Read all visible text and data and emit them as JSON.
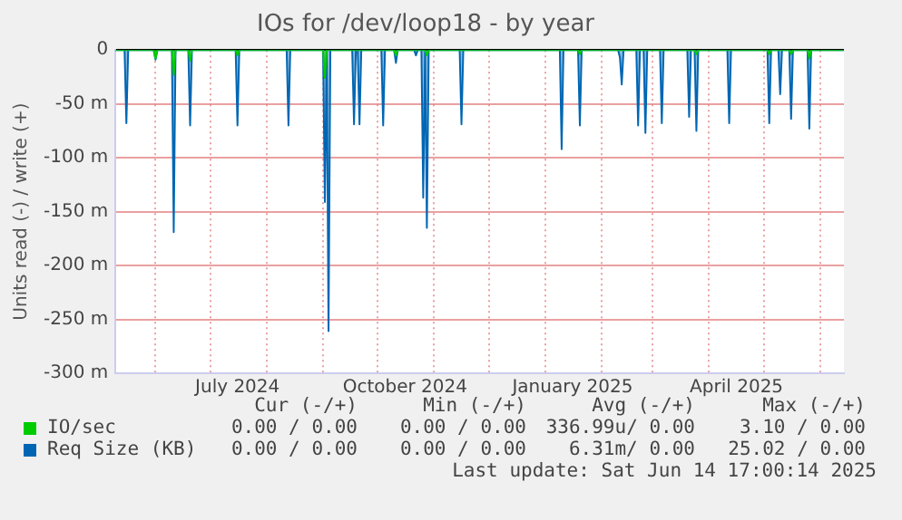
{
  "chart_data": {
    "type": "area",
    "title": "IOs for /dev/loop18 - by year",
    "ylabel": "Units read (-) / write (+)",
    "x": [
      "2024-05-10",
      "2024-05-15",
      "2024-05-16",
      "2024-05-17",
      "2024-05-31",
      "2024-06-01",
      "2024-06-02",
      "2024-06-10",
      "2024-06-11",
      "2024-06-12",
      "2024-06-19",
      "2024-06-20",
      "2024-06-21",
      "2024-07-15",
      "2024-07-16",
      "2024-07-17",
      "2024-08-12",
      "2024-08-13",
      "2024-08-14",
      "2024-09-01",
      "2024-09-02",
      "2024-09-03",
      "2024-09-04",
      "2024-09-05",
      "2024-09-17",
      "2024-09-18",
      "2024-09-19",
      "2024-09-20",
      "2024-09-21",
      "2024-09-22",
      "2024-10-03",
      "2024-10-04",
      "2024-10-05",
      "2024-10-10",
      "2024-10-11",
      "2024-10-12",
      "2024-10-21",
      "2024-10-22",
      "2024-10-23",
      "2024-10-25",
      "2024-10-26",
      "2024-10-27",
      "2024-10-28",
      "2024-10-29",
      "2024-11-15",
      "2024-11-16",
      "2024-11-17",
      "2025-01-09",
      "2025-01-10",
      "2025-01-11",
      "2025-01-19",
      "2025-01-20",
      "2025-01-21",
      "2025-02-10",
      "2025-02-11",
      "2025-02-12",
      "2025-02-13",
      "2025-02-20",
      "2025-02-21",
      "2025-02-22",
      "2025-02-24",
      "2025-02-25",
      "2025-02-26",
      "2025-03-05",
      "2025-03-06",
      "2025-03-07",
      "2025-03-20",
      "2025-03-21",
      "2025-03-22",
      "2025-03-24",
      "2025-03-25",
      "2025-03-26",
      "2025-04-11",
      "2025-04-12",
      "2025-04-13",
      "2025-05-03",
      "2025-05-04",
      "2025-05-05",
      "2025-05-09",
      "2025-05-10",
      "2025-05-11",
      "2025-05-15",
      "2025-05-16",
      "2025-05-17",
      "2025-05-25",
      "2025-05-26",
      "2025-05-27",
      "2025-06-14"
    ],
    "series": [
      {
        "name": "Req Size (KB)",
        "color": "#0066b3",
        "values": [
          0,
          0,
          -68,
          0,
          0,
          -9,
          0,
          0,
          -169,
          0,
          0,
          -70,
          0,
          0,
          -70,
          0,
          0,
          -70,
          0,
          0,
          -141,
          0,
          -261,
          0,
          0,
          -69,
          0,
          0,
          -69,
          0,
          0,
          -70,
          0,
          0,
          -12,
          0,
          0,
          -5,
          0,
          0,
          -137,
          0,
          -165,
          0,
          0,
          -69,
          0,
          0,
          -92,
          0,
          0,
          -70,
          0,
          0,
          -7,
          -32,
          0,
          0,
          -70,
          0,
          0,
          -77,
          0,
          0,
          -68,
          0,
          0,
          -62,
          0,
          0,
          -75,
          0,
          0,
          -68,
          0,
          0,
          -68,
          0,
          0,
          -41,
          0,
          0,
          -64,
          0,
          0,
          -73,
          0,
          0
        ]
      },
      {
        "name": "IO/sec",
        "color": "#00cc00",
        "values": [
          0,
          0,
          0,
          0,
          0,
          -8,
          0,
          0,
          -23,
          0,
          0,
          -10,
          0,
          0,
          -5,
          0,
          0,
          0,
          0,
          0,
          -26,
          0,
          0,
          0,
          0,
          0,
          0,
          0,
          0,
          0,
          0,
          0,
          0,
          0,
          -5,
          0,
          0,
          0,
          0,
          0,
          0,
          0,
          -5,
          0,
          0,
          0,
          0,
          0,
          0,
          0,
          0,
          -4,
          0,
          0,
          0,
          0,
          0,
          0,
          0,
          0,
          0,
          0,
          0,
          0,
          0,
          0,
          0,
          0,
          0,
          0,
          -4,
          0,
          0,
          0,
          0,
          0,
          -4,
          0,
          0,
          0,
          0,
          0,
          -4,
          0,
          0,
          -8,
          0,
          0
        ]
      }
    ],
    "xlim": [
      "2024-05-10",
      "2025-06-14"
    ],
    "xticks": [
      {
        "value": "2024-06-01",
        "label": null
      },
      {
        "value": "2024-07-01",
        "label": null
      },
      {
        "value": "2024-07-16",
        "label": "July 2024"
      },
      {
        "value": "2024-08-01",
        "label": null
      },
      {
        "value": "2024-09-01",
        "label": null
      },
      {
        "value": "2024-10-01",
        "label": null
      },
      {
        "value": "2024-10-16",
        "label": "October 2024"
      },
      {
        "value": "2024-11-01",
        "label": null
      },
      {
        "value": "2024-12-01",
        "label": null
      },
      {
        "value": "2025-01-01",
        "label": null
      },
      {
        "value": "2025-01-16",
        "label": "January 2025"
      },
      {
        "value": "2025-02-01",
        "label": null
      },
      {
        "value": "2025-03-01",
        "label": null
      },
      {
        "value": "2025-04-01",
        "label": null
      },
      {
        "value": "2025-04-16",
        "label": "April 2025"
      },
      {
        "value": "2025-05-01",
        "label": null
      },
      {
        "value": "2025-06-01",
        "label": null
      }
    ],
    "ylim": [
      -300,
      0
    ],
    "yticks": [
      {
        "value": -300,
        "label": "-300 m"
      },
      {
        "value": -250,
        "label": "-250 m"
      },
      {
        "value": -200,
        "label": "-200 m"
      },
      {
        "value": -150,
        "label": "-150 m"
      },
      {
        "value": -100,
        "label": "-100 m"
      },
      {
        "value": -50,
        "label": "-50 m"
      },
      0
    ],
    "grid": true,
    "legend": "bottom",
    "annotations": [
      "Cur (-/+)",
      "Min (-/+)",
      "Avg (-/+)",
      "Max (-/+)",
      "0.00 / 0.00",
      "0.00 / 0.00",
      "6.31m/ 0.00",
      "25.02 / 0.00",
      "0.00 / 0.00",
      "0.00 / 0.00",
      "336.99u/ 0.00",
      "3.10 / 0.00",
      "Last update: Sat Jun 14 17:00:14 2025"
    ]
  }
}
